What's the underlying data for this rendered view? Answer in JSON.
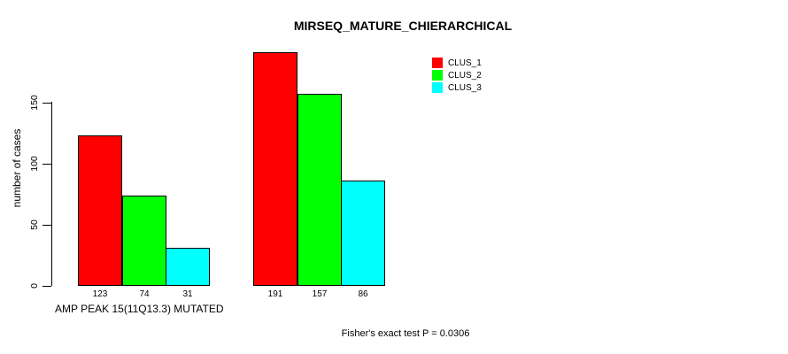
{
  "chart_data": {
    "type": "bar",
    "title": "MIRSEQ_MATURE_CHIERARCHICAL",
    "ylabel": "number of cases",
    "xlabel": "AMP PEAK 15(11Q13.3) MUTATED",
    "footnote": "Fisher's exact test P = 0.0306",
    "categories": [
      "AMP PEAK 15(11Q13.3) MUTATED",
      ""
    ],
    "series": [
      {
        "name": "CLUS_1",
        "color": "#ff0000",
        "values": [
          123,
          191
        ]
      },
      {
        "name": "CLUS_2",
        "color": "#00ff00",
        "values": [
          74,
          157
        ]
      },
      {
        "name": "CLUS_3",
        "color": "#00ffff",
        "values": [
          31,
          86
        ]
      }
    ],
    "yticks": [
      0,
      50,
      100,
      150
    ],
    "ylim": [
      0,
      150
    ],
    "bar_value_labels_shown": true,
    "legend_position": "top-right",
    "grid": false,
    "axis_color": "#000000",
    "text_color": "#000000",
    "background_color": "#ffffff"
  }
}
